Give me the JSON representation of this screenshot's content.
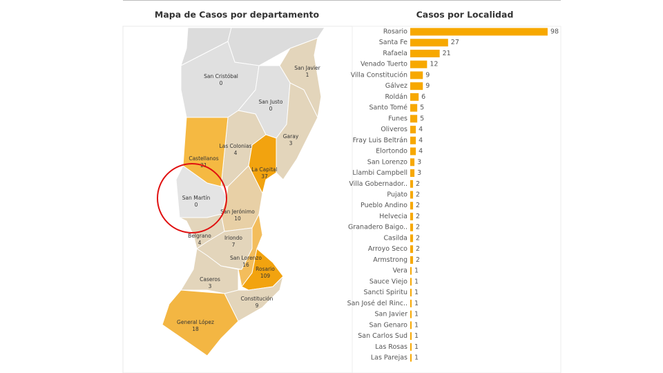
{
  "map": {
    "title": "Mapa de Casos por departamento",
    "regions": [
      {
        "name": "San Cristóbal",
        "value": 0,
        "color": "#e0e0e0"
      },
      {
        "name": "San Javier",
        "value": 1,
        "color": "#e3d5bb"
      },
      {
        "name": "San Justo",
        "value": 0,
        "color": "#e0e0e0"
      },
      {
        "name": "Garay",
        "value": 3,
        "color": "#e3d5bb"
      },
      {
        "name": "Las Colonias",
        "value": 4,
        "color": "#e3d5bb"
      },
      {
        "name": "Castellanos",
        "value": 21,
        "color": "#f5b942"
      },
      {
        "name": "La Capital",
        "value": 37,
        "color": "#f2a30f"
      },
      {
        "name": "San Martín",
        "value": 0,
        "color": "#e4e4e4"
      },
      {
        "name": "San Jerónimo",
        "value": 10,
        "color": "#e8d0a6"
      },
      {
        "name": "Belgrano",
        "value": 4,
        "color": "#e3d5bb"
      },
      {
        "name": "Iriondo",
        "value": 7,
        "color": "#e3d5bb"
      },
      {
        "name": "San Lorenzo",
        "value": 16,
        "color": "#f3bd5c"
      },
      {
        "name": "Rosario",
        "value": 109,
        "color": "#f2a30f"
      },
      {
        "name": "Caseros",
        "value": 3,
        "color": "#e3d5bb"
      },
      {
        "name": "Constitución",
        "value": 9,
        "color": "#e3d5bb"
      },
      {
        "name": "General López",
        "value": 18,
        "color": "#f3b643"
      }
    ]
  },
  "chart_data": {
    "type": "bar",
    "orientation": "horizontal",
    "title": "Casos por  Localidad",
    "color": "#f7a800",
    "categories": [
      "Rosario",
      "Santa Fe",
      "Rafaela",
      "Venado Tuerto",
      "Villa Constitución",
      "Gálvez",
      "Roldán",
      "Santo Tomé",
      "Funes",
      "Oliveros",
      "Fray Luis Beltrán",
      "Elortondo",
      "San Lorenzo",
      "Llambi Campbell",
      "Villa Gobernador..",
      "Pujato",
      "Pueblo Andino",
      "Helvecia",
      "Granadero Baigo..",
      "Casilda",
      "Arroyo Seco",
      "Armstrong",
      "Vera",
      "Sauce Viejo",
      "Sancti Spiritu",
      "San José del Rinc..",
      "San Javier",
      "San Genaro",
      "San Carlos Sud",
      "Las Rosas",
      "Las Parejas"
    ],
    "values": [
      98,
      27,
      21,
      12,
      9,
      9,
      6,
      5,
      5,
      4,
      4,
      4,
      3,
      3,
      2,
      2,
      2,
      2,
      2,
      2,
      2,
      2,
      1,
      1,
      1,
      1,
      1,
      1,
      1,
      1,
      1
    ],
    "xlim": [
      0,
      100
    ]
  }
}
